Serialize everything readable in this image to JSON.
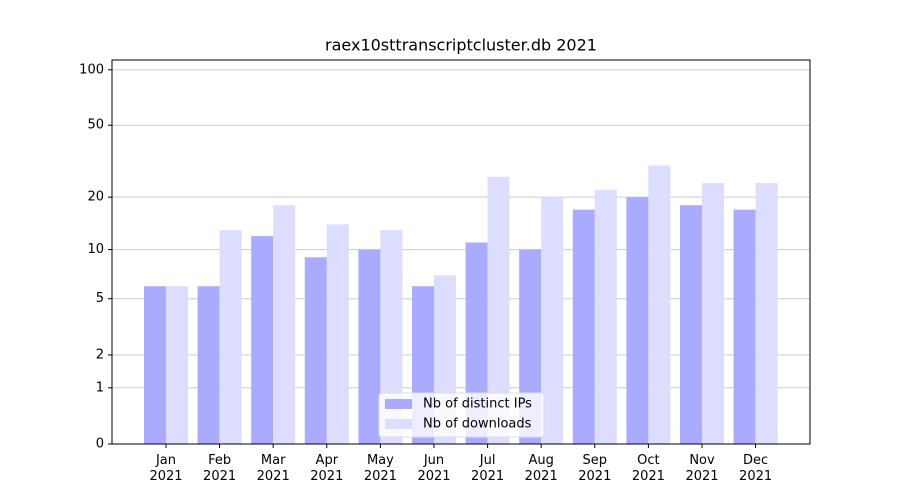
{
  "chart_data": {
    "type": "bar",
    "title": "raex10sttranscriptcluster.db 2021",
    "categories": [
      "Jan\n2021",
      "Feb\n2021",
      "Mar\n2021",
      "Apr\n2021",
      "May\n2021",
      "Jun\n2021",
      "Jul\n2021",
      "Aug\n2021",
      "Sep\n2021",
      "Oct\n2021",
      "Nov\n2021",
      "Dec\n2021"
    ],
    "series": [
      {
        "name": "Nb of distinct IPs",
        "color": "#aaaaff",
        "values": [
          6,
          6,
          12,
          9,
          10,
          6,
          11,
          10,
          17,
          20,
          18,
          17
        ]
      },
      {
        "name": "Nb of downloads",
        "color": "#ddddff",
        "values": [
          6,
          13,
          18,
          14,
          13,
          7,
          26,
          20,
          22,
          30,
          24,
          24
        ]
      }
    ],
    "yscale": "log1p",
    "ylim": [
      0,
      113
    ],
    "yticks": [
      0,
      1,
      2,
      5,
      10,
      20,
      50,
      100
    ],
    "grid": true,
    "legend": "lower center"
  }
}
